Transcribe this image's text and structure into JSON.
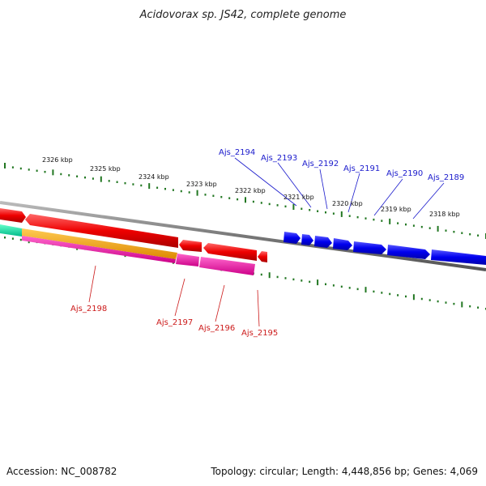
{
  "title": "Acidovorax sp. JS42, complete genome",
  "footer": {
    "accession": "Accession: NC_008782",
    "summary": "Topology: circular; Length: 4,448,856 bp; Genes: 4,069"
  },
  "ticks_upper": [
    {
      "label": "2326 kbp"
    },
    {
      "label": "2325 kbp"
    },
    {
      "label": "2324 kbp"
    },
    {
      "label": "2323 kbp"
    },
    {
      "label": "2322 kbp"
    },
    {
      "label": "2321 kbp"
    },
    {
      "label": "2320 kbp"
    },
    {
      "label": "2319 kbp"
    },
    {
      "label": "2318 kbp"
    }
  ],
  "genes_forward": [
    {
      "label": "Ajs_2194"
    },
    {
      "label": "Ajs_2193"
    },
    {
      "label": "Ajs_2192"
    },
    {
      "label": "Ajs_2191"
    },
    {
      "label": "Ajs_2190"
    },
    {
      "label": "Ajs_2189"
    }
  ],
  "genes_reverse": [
    {
      "label": "Ajs_2198"
    },
    {
      "label": "Ajs_2197"
    },
    {
      "label": "Ajs_2196"
    },
    {
      "label": "Ajs_2195"
    }
  ],
  "colors": {
    "forward_gene": "#0000ee",
    "reverse_gene": "#ee0000",
    "rna_orange": "#ee9900",
    "rna_magenta": "#ee0099",
    "teal": "#00dd99",
    "backbone": "#888888",
    "tick": "#227722"
  }
}
